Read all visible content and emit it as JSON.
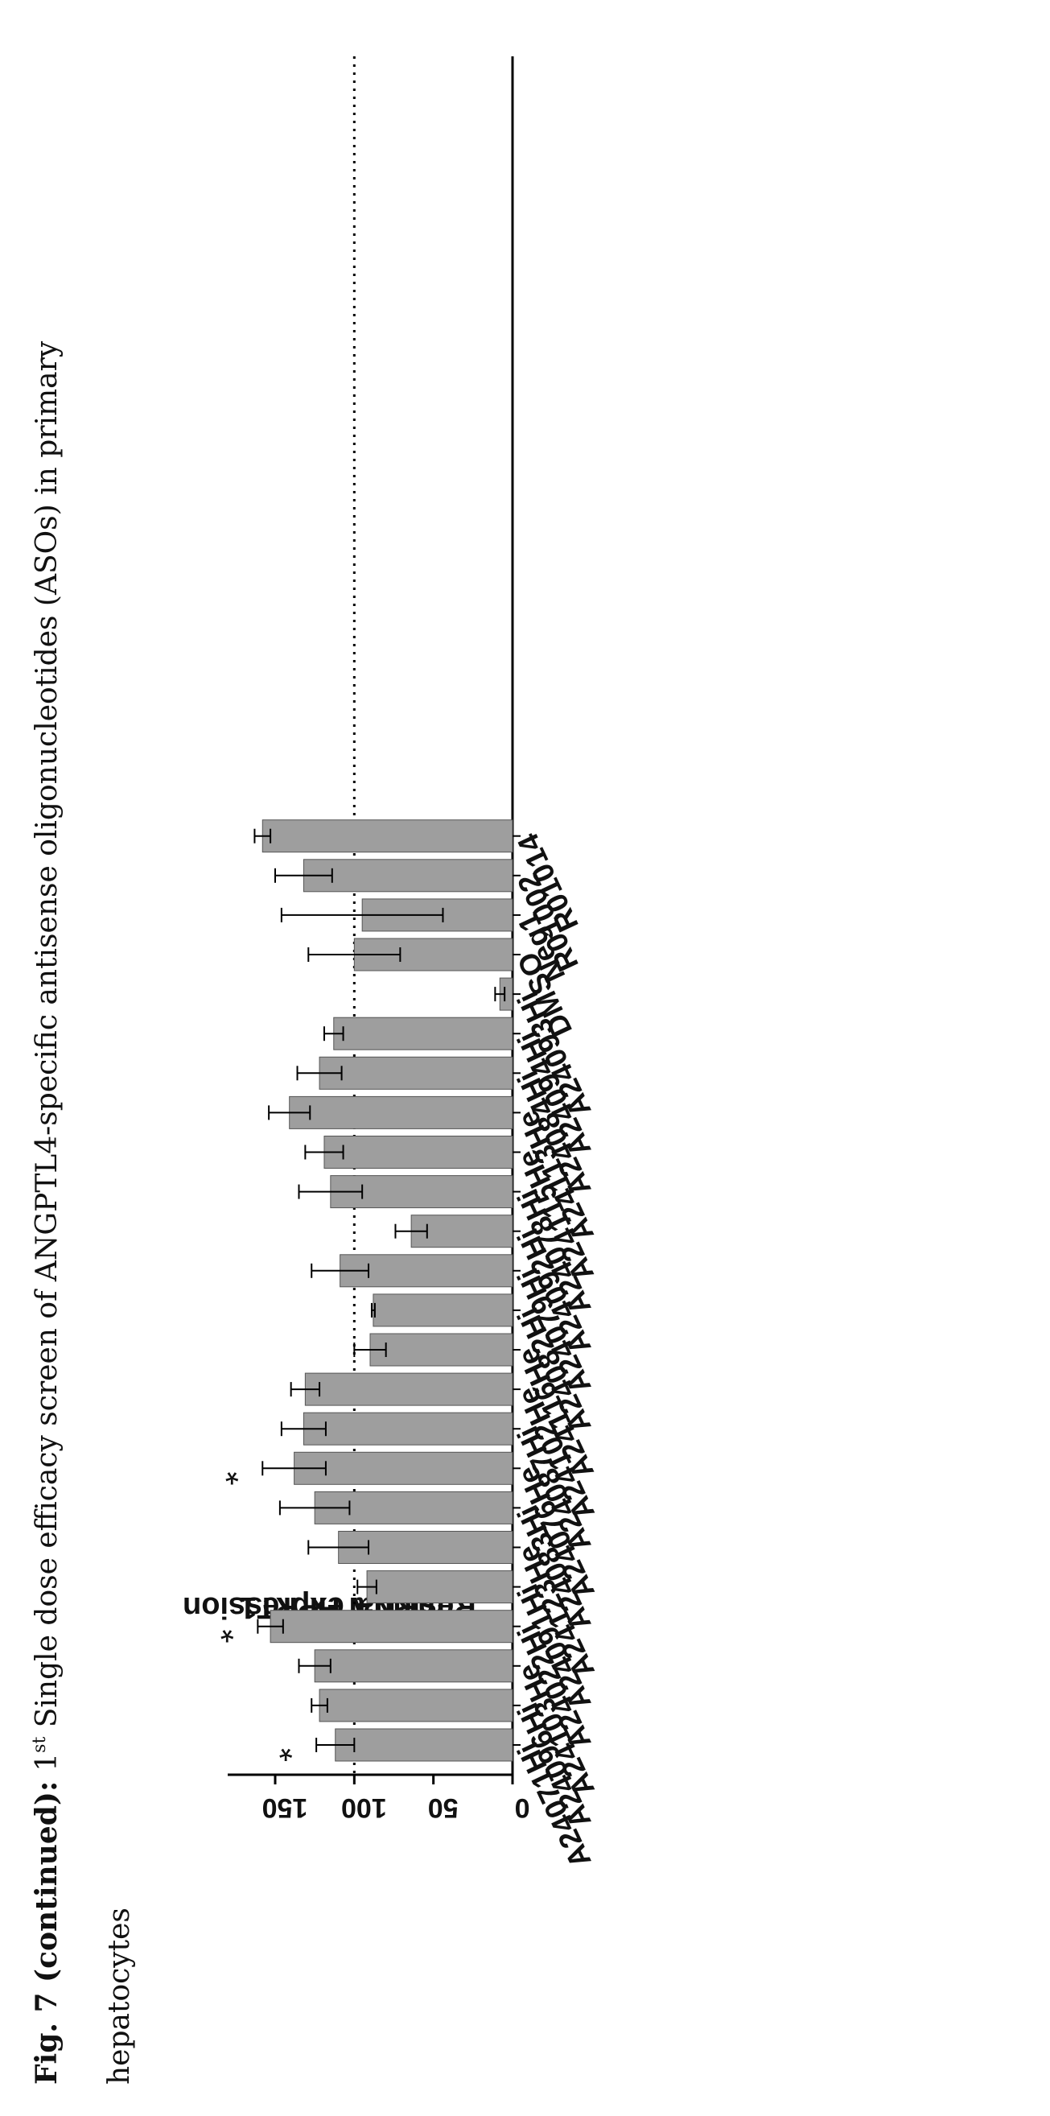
{
  "caption": {
    "line1_bold": "Fig. 7 (continued):",
    "line1_ordinal": "1",
    "line1_sup": "st",
    "line1_rest": " Single dose efficacy screen of ANGPTL4-specific antisense oligonucleotides (ASOs) in primary",
    "line2": "hepatocytes"
  },
  "chart_data": {
    "type": "bar",
    "title": "",
    "ylabel_line1": "Residual HPRT1",
    "ylabel_line2": "mRNA expression",
    "xlabel": "",
    "ylim": [
      0,
      180
    ],
    "yticks": [
      0,
      50,
      100,
      150
    ],
    "reference_line": 100,
    "bar_color": "#9e9e9e",
    "categories": [
      "A24071Hi",
      "A24096Hi",
      "A24103He",
      "A24022Hi",
      "A24091Hi",
      "A24123He",
      "A24083Hi",
      "A24076He",
      "A24087Hi",
      "A24102He",
      "A24116He",
      "A24082Hi",
      "A24079Hi",
      "A24092Hi",
      "A24078Hi",
      "A24115He",
      "A24113He",
      "A24084Hi",
      "A24094Hi",
      "A24093Hi",
      "DMSO",
      "Neg1",
      "R01002",
      "R01014"
    ],
    "values": [
      112,
      122,
      125,
      153,
      92,
      110,
      125,
      138,
      132,
      131,
      90,
      88,
      109,
      64,
      115,
      119,
      141,
      122,
      113,
      8,
      100,
      95,
      132,
      158
    ],
    "errors": [
      12,
      5,
      10,
      8,
      6,
      19,
      22,
      20,
      14,
      9,
      10,
      1,
      18,
      10,
      20,
      12,
      13,
      14,
      6,
      3,
      29,
      51,
      18,
      5
    ],
    "significant": [
      true,
      false,
      false,
      true,
      false,
      false,
      false,
      true,
      false,
      false,
      false,
      false,
      false,
      false,
      false,
      false,
      false,
      false,
      false,
      false,
      false,
      false,
      false,
      false
    ],
    "significance_marker": "*"
  }
}
